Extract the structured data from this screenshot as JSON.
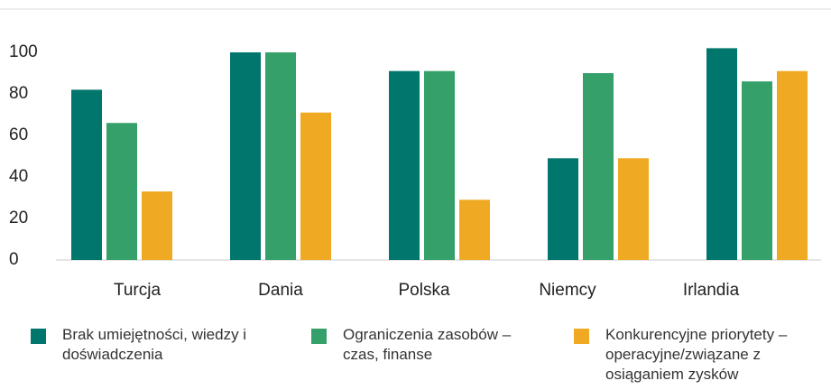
{
  "chart_data": {
    "type": "bar",
    "categories": [
      "Turcja",
      "Dania",
      "Polska",
      "Niemcy",
      "Irlandia"
    ],
    "series": [
      {
        "name": "Brak umiejętności, wiedzy i doświadczenia",
        "color": "#00766c",
        "values": [
          82,
          100,
          91,
          49,
          102
        ]
      },
      {
        "name": "Ograniczenia zasobów – czas, finanse",
        "color": "#35a069",
        "values": [
          66,
          100,
          91,
          90,
          86
        ]
      },
      {
        "name": "Konkurencyjne priorytety – operacyjne/związane z osiąganiem zysków",
        "color": "#f0a922",
        "values": [
          33,
          71,
          29,
          49,
          91
        ]
      }
    ],
    "ylim": [
      0,
      100
    ],
    "yticks": [
      0,
      20,
      40,
      60,
      80,
      100
    ],
    "grid": false
  }
}
